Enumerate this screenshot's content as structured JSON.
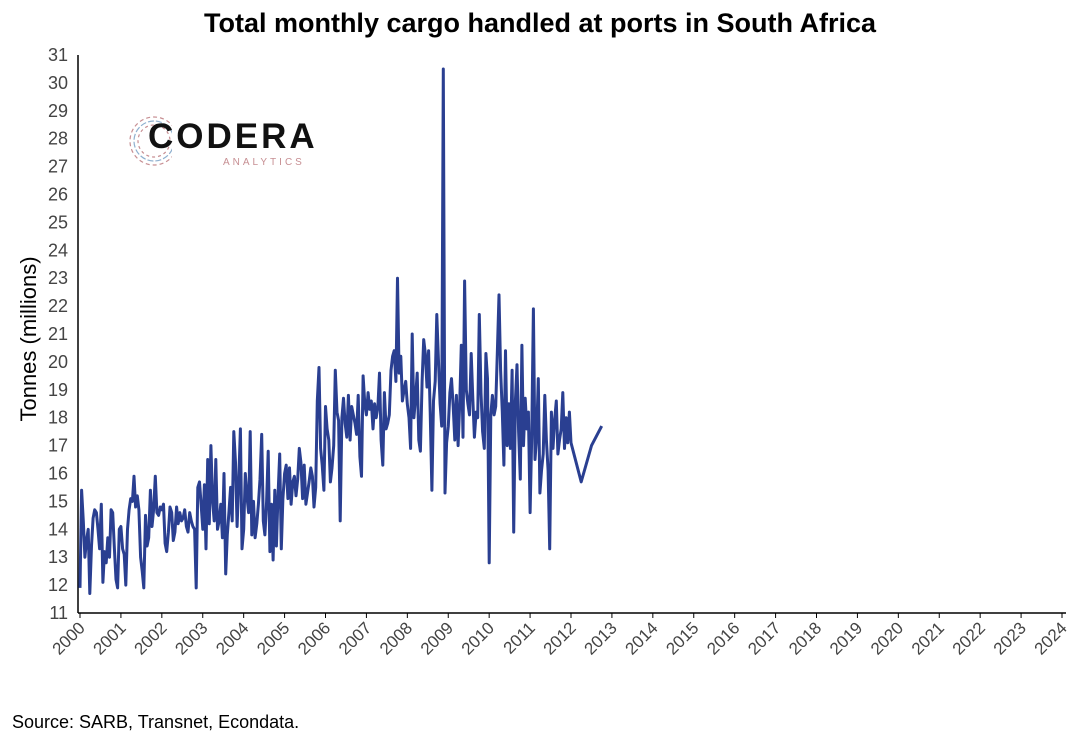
{
  "chart_data": {
    "type": "line",
    "title": "Total monthly cargo handled at ports in South Africa",
    "ylabel": "Tonnes (millions)",
    "xlabel": "",
    "ylim": [
      11,
      31
    ],
    "yticks": [
      11,
      12,
      13,
      14,
      15,
      16,
      17,
      18,
      19,
      20,
      21,
      22,
      23,
      24,
      25,
      26,
      27,
      28,
      29,
      30,
      31
    ],
    "xticks": [
      "2000",
      "2001",
      "2002",
      "2003",
      "2004",
      "2005",
      "2006",
      "2007",
      "2008",
      "2009",
      "2010",
      "2011",
      "2012",
      "2013",
      "2014",
      "2015",
      "2016",
      "2017",
      "2018",
      "2019",
      "2020",
      "2021",
      "2022",
      "2023",
      "2024"
    ],
    "grid": false,
    "series": [
      {
        "color": "#2a3f91",
        "values_by_year": {
          "2000": [
            11.9,
            15.4,
            14.3,
            13.0,
            13.6,
            14.0,
            11.7,
            13.4,
            14.4,
            14.7,
            14.6,
            14.0,
            13.3,
            14.9,
            12.1,
            13.2,
            12.8,
            13.7,
            13.0,
            14.7,
            14.6,
            13.3,
            12.2,
            11.9,
            14.0
          ],
          "2001": [
            14.1,
            13.3,
            13.1,
            12.0,
            14.0,
            14.7,
            15.1,
            15.0,
            15.9,
            14.8,
            15.2,
            14.7,
            13.0,
            12.5,
            11.9,
            14.5,
            13.4,
            13.7,
            15.4,
            14.1,
            14.7,
            15.9,
            14.6,
            14.5,
            14.8
          ],
          "2002": [
            14.7,
            14.9,
            13.5,
            13.2,
            13.9,
            14.8,
            14.6,
            13.6,
            13.9,
            14.8,
            14.2,
            14.6,
            14.3,
            14.4,
            14.7,
            14.1,
            13.9,
            14.6,
            14.3,
            14.1,
            14.0,
            11.9,
            15.5,
            15.7,
            14.9
          ],
          "2003": [
            14.0,
            15.6,
            13.3,
            16.5,
            14.2,
            17.0,
            15.0,
            14.3,
            16.5,
            14.0,
            14.3,
            14.9,
            13.7,
            16.0,
            12.4,
            13.8,
            14.6,
            15.5,
            14.3,
            17.5,
            16.4,
            14.1,
            15.8,
            17.6,
            13.3
          ],
          "2004": [
            14.0,
            16.0,
            15.2,
            14.6,
            17.5,
            13.8,
            15.0,
            13.7,
            14.2,
            14.9,
            15.8,
            17.4,
            14.3,
            13.8,
            15.0,
            16.8,
            13.2,
            14.9,
            12.9,
            15.4,
            13.4,
            15.2,
            16.7,
            13.3,
            15.1
          ],
          "2005": [
            16.0,
            16.3,
            15.1,
            16.2,
            14.9,
            15.7,
            15.9,
            15.2,
            15.8,
            16.9,
            16.4,
            15.1,
            16.3,
            14.9,
            15.3,
            15.7,
            16.2,
            15.9,
            14.8,
            15.5,
            18.6,
            19.8,
            16.9,
            16.3,
            15.4
          ],
          "2006": [
            18.4,
            17.6,
            17.2,
            15.7,
            16.2,
            17.0,
            19.7,
            18.2,
            17.9,
            14.3,
            18.0,
            18.7,
            17.8,
            17.3,
            18.8,
            17.2,
            18.4,
            18.1,
            17.8,
            17.4,
            18.8,
            16.6,
            15.9,
            19.5,
            18.5
          ],
          "2007": [
            18.1,
            18.9,
            18.3,
            18.6,
            17.6,
            18.5,
            18.0,
            18.4,
            19.6,
            17.2,
            16.3,
            18.9,
            17.6,
            17.8,
            18.1,
            19.7,
            20.2,
            20.4,
            19.3,
            23.0,
            19.6,
            20.2,
            18.6,
            19.0,
            19.3
          ],
          "2008": [
            18.5,
            18.0,
            16.9,
            21.0,
            18.0,
            18.7,
            19.6,
            17.2,
            16.8,
            19.3,
            20.8,
            20.3,
            19.1,
            20.4,
            18.2,
            15.4,
            18.6,
            19.3,
            21.7,
            20.1,
            18.5,
            17.7,
            30.5,
            15.3,
            17.1
          ],
          "2009": [
            17.7,
            18.9,
            19.4,
            18.4,
            17.2,
            18.8,
            17.0,
            18.5,
            20.6,
            17.3,
            22.9,
            19.0,
            18.5,
            18.1,
            20.3,
            18.7,
            17.3,
            18.2,
            18.0,
            21.7,
            18.9,
            17.5,
            16.9,
            20.3,
            19.4
          ],
          "2010": [
            12.8,
            18.1,
            18.8,
            18.1,
            18.4,
            20.3,
            22.4,
            19.7,
            18.2,
            16.3,
            20.4,
            17.0,
            18.5,
            16.9,
            19.7,
            13.9,
            18.6,
            19.9,
            17.5,
            15.8,
            20.6,
            17.0,
            18.7,
            17.6,
            18.2
          ],
          "2011": [
            14.6,
            17.3,
            21.9,
            16.5,
            17.3,
            19.4,
            15.3,
            16.1,
            16.7,
            18.8,
            17.2,
            16.1,
            13.3,
            18.2,
            16.9,
            17.9,
            18.6,
            16.7,
            17.2,
            17.6,
            18.9,
            16.9,
            18.0,
            17.1,
            18.2
          ],
          "2012": [
            17.1,
            15.7,
            17.0,
            17.7
          ]
        }
      }
    ],
    "source": "Source: SARB, Transnet, Econdata."
  },
  "logo": {
    "name": "CODERA",
    "sub": "ANALYTICS",
    "brand_color": "#c78f93"
  }
}
